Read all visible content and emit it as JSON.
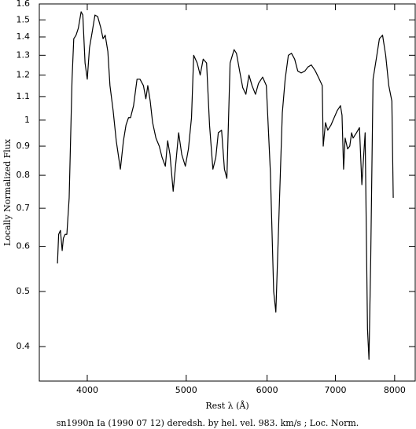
{
  "chart_data": {
    "type": "line",
    "caption": "sn1990n Ia (1990 07 12) deredsh. by hel. vel.   983. km/s ;  Loc. Norm.",
    "x_label": "Rest λ (Å)",
    "y_label": "Locally Normalized Flux",
    "xscale": "log",
    "yscale": "log",
    "xlim": [
      3590,
      8380
    ],
    "ylim": [
      0.348,
      1.6
    ],
    "xticks": [
      4000,
      5000,
      6000,
      7000,
      8000
    ],
    "yticks": [
      0.4,
      0.5,
      0.6,
      0.7,
      0.8,
      0.9,
      1,
      1.1,
      1.2,
      1.3,
      1.4,
      1.5,
      1.6
    ],
    "series": [
      {
        "color": "#000000",
        "x": [
          3740,
          3750,
          3765,
          3780,
          3790,
          3805,
          3820,
          3840,
          3865,
          3880,
          3900,
          3920,
          3945,
          3960,
          3980,
          4000,
          4020,
          4045,
          4070,
          4095,
          4125,
          4145,
          4165,
          4190,
          4210,
          4240,
          4270,
          4310,
          4340,
          4365,
          4390,
          4410,
          4440,
          4475,
          4505,
          4540,
          4565,
          4585,
          4610,
          4635,
          4670,
          4705,
          4735,
          4770,
          4795,
          4820,
          4855,
          4890,
          4915,
          4950,
          4990,
          5025,
          5060,
          5085,
          5125,
          5160,
          5195,
          5235,
          5270,
          5310,
          5345,
          5375,
          5415,
          5450,
          5480,
          5520,
          5570,
          5600,
          5640,
          5680,
          5720,
          5760,
          5800,
          5845,
          5885,
          5940,
          5990,
          6045,
          6090,
          6120,
          6165,
          6210,
          6250,
          6295,
          6340,
          6385,
          6430,
          6480,
          6535,
          6580,
          6630,
          6690,
          6750,
          6795,
          6810,
          6845,
          6880,
          6930,
          6980,
          7030,
          7080,
          7105,
          7130,
          7155,
          7195,
          7230,
          7260,
          7285,
          7340,
          7390,
          7430,
          7485,
          7525,
          7550,
          7580,
          7620,
          7675,
          7730,
          7785,
          7840,
          7895,
          7950,
          7975
        ],
        "values": [
          0.56,
          0.63,
          0.64,
          0.59,
          0.62,
          0.63,
          0.63,
          0.73,
          1.18,
          1.39,
          1.41,
          1.45,
          1.55,
          1.53,
          1.26,
          1.18,
          1.34,
          1.43,
          1.53,
          1.52,
          1.45,
          1.39,
          1.41,
          1.32,
          1.15,
          1.04,
          0.92,
          0.82,
          0.92,
          0.98,
          1.01,
          1.01,
          1.06,
          1.18,
          1.18,
          1.15,
          1.09,
          1.15,
          1.08,
          0.99,
          0.93,
          0.9,
          0.86,
          0.83,
          0.92,
          0.87,
          0.75,
          0.86,
          0.95,
          0.87,
          0.83,
          0.89,
          1.01,
          1.3,
          1.26,
          1.2,
          1.28,
          1.26,
          0.98,
          0.82,
          0.86,
          0.95,
          0.96,
          0.82,
          0.79,
          1.26,
          1.33,
          1.31,
          1.22,
          1.14,
          1.11,
          1.2,
          1.15,
          1.11,
          1.16,
          1.19,
          1.15,
          0.81,
          0.5,
          0.46,
          0.69,
          1.03,
          1.18,
          1.3,
          1.31,
          1.28,
          1.22,
          1.21,
          1.22,
          1.24,
          1.25,
          1.22,
          1.18,
          1.15,
          0.9,
          0.99,
          0.96,
          0.98,
          1.01,
          1.04,
          1.06,
          1.02,
          0.82,
          0.93,
          0.89,
          0.9,
          0.95,
          0.93,
          0.95,
          0.97,
          0.77,
          0.95,
          0.43,
          0.38,
          0.57,
          1.18,
          1.28,
          1.39,
          1.41,
          1.3,
          1.15,
          1.08,
          0.73
        ]
      }
    ]
  }
}
